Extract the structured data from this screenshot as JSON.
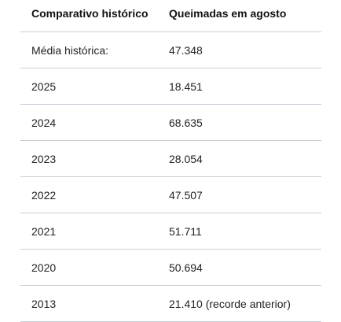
{
  "table": {
    "headers": [
      "Comparativo histórico",
      "Queimadas em agosto"
    ],
    "rows": [
      [
        "Média histórica:",
        "47.348"
      ],
      [
        "2025",
        "18.451"
      ],
      [
        "2024",
        "68.635"
      ],
      [
        "2023",
        "28.054"
      ],
      [
        "2022",
        "47.507"
      ],
      [
        "2021",
        "51.711"
      ],
      [
        "2020",
        "50.694"
      ],
      [
        "2013",
        "21.410 (recorde anterior)"
      ]
    ]
  }
}
